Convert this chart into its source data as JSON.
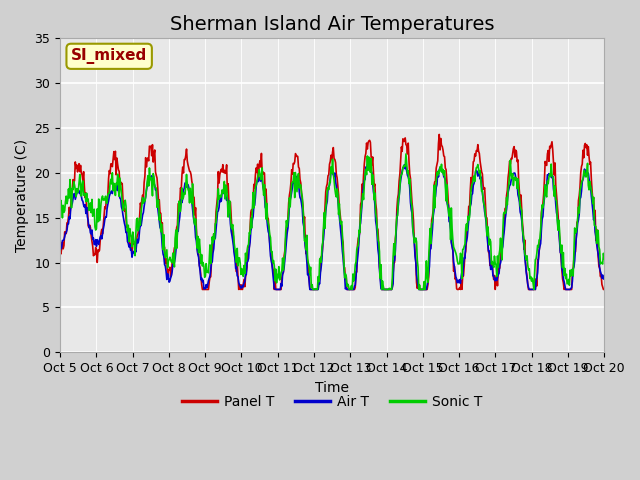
{
  "title": "Sherman Island Air Temperatures",
  "xlabel": "Time",
  "ylabel": "Temperature (C)",
  "label_text": "SI_mixed",
  "ylim": [
    0,
    35
  ],
  "n_days": 15,
  "yticks": [
    0,
    5,
    10,
    15,
    20,
    25,
    30,
    35
  ],
  "xtick_labels": [
    "Oct 5",
    "Oct 6",
    "Oct 7",
    "Oct 8",
    "Oct 9",
    "Oct 10",
    "Oct 11",
    "Oct 12",
    "Oct 13",
    "Oct 14",
    "Oct 15",
    "Oct 16",
    "Oct 17",
    "Oct 18",
    "Oct 19",
    "Oct 20"
  ],
  "legend_labels": [
    "Panel T",
    "Air T",
    "Sonic T"
  ],
  "line_colors": [
    "#cc0000",
    "#0000cc",
    "#00cc00"
  ],
  "bg_color": "#e8e8e8",
  "grid_color": "#ffffff",
  "fig_bg_color": "#d0d0d0",
  "annotation_bg": "#ffffcc",
  "annotation_text_color": "#990000",
  "annotation_border_color": "#999900",
  "title_fontsize": 14,
  "axis_fontsize": 10,
  "tick_fontsize": 9,
  "panel_base": [
    16,
    16,
    17,
    16,
    13,
    14,
    14,
    13,
    14,
    13,
    14,
    15,
    15,
    14,
    14,
    15
  ],
  "panel_amp": [
    5,
    5,
    5,
    7,
    7,
    7,
    8,
    8,
    9,
    11,
    10,
    8,
    7,
    9,
    9,
    8
  ],
  "air_base": [
    15,
    15,
    15,
    14,
    12,
    13,
    13,
    12,
    13,
    12,
    13,
    14,
    14,
    13,
    13,
    14
  ],
  "air_amp": [
    3,
    3,
    4,
    6,
    5,
    6,
    7,
    7,
    8,
    9,
    8,
    6,
    6,
    7,
    7,
    6
  ],
  "sonic_base": [
    17,
    17,
    16,
    15,
    13,
    14,
    14,
    13,
    14,
    13,
    14,
    15,
    15,
    14,
    14,
    15
  ],
  "sonic_amp": [
    1,
    2,
    3,
    5,
    4,
    5,
    6,
    6,
    7,
    8,
    7,
    5,
    5,
    6,
    6,
    5
  ]
}
